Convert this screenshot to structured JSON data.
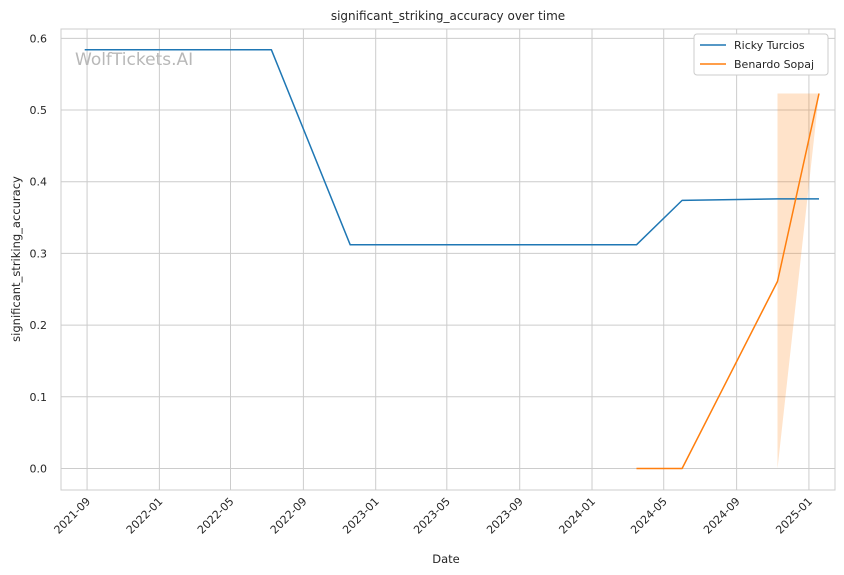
{
  "chart_data": {
    "type": "line",
    "title": "significant_striking_accuracy over time",
    "xlabel": "Date",
    "ylabel": "significant_striking_accuracy",
    "watermark": "WolfTickets.AI",
    "x_ticks": [
      "2021-09",
      "2022-01",
      "2022-05",
      "2022-09",
      "2023-01",
      "2023-05",
      "2023-09",
      "2024-01",
      "2024-05",
      "2024-09",
      "2025-01"
    ],
    "y_ticks": [
      "0.0",
      "0.1",
      "0.2",
      "0.3",
      "0.4",
      "0.5",
      "0.6"
    ],
    "xlim": [
      "2021-07-19",
      "2025-02-14"
    ],
    "ylim": [
      -0.03,
      0.613
    ],
    "grid": true,
    "legend_position": "top-right",
    "series": [
      {
        "name": "Ricky Turcios",
        "color": "#1f77b4",
        "points": [
          {
            "x": "2021-08-28",
            "y": 0.584
          },
          {
            "x": "2022-07-09",
            "y": 0.584
          },
          {
            "x": "2022-11-19",
            "y": 0.312
          },
          {
            "x": "2024-03-16",
            "y": 0.312
          },
          {
            "x": "2024-06-01",
            "y": 0.374
          },
          {
            "x": "2024-11-09",
            "y": 0.376
          },
          {
            "x": "2025-01-18",
            "y": 0.376
          }
        ]
      },
      {
        "name": "Benardo Sopaj",
        "color": "#ff7f0e",
        "points": [
          {
            "x": "2024-03-16",
            "y": 0.0
          },
          {
            "x": "2024-06-01",
            "y": 0.0
          },
          {
            "x": "2024-11-09",
            "y": 0.261
          },
          {
            "x": "2025-01-18",
            "y": 0.523
          }
        ],
        "band": [
          {
            "x": "2024-11-09",
            "lo": 0.0,
            "hi": 0.523
          },
          {
            "x": "2025-01-18",
            "lo": 0.523,
            "hi": 0.523
          }
        ]
      }
    ]
  }
}
